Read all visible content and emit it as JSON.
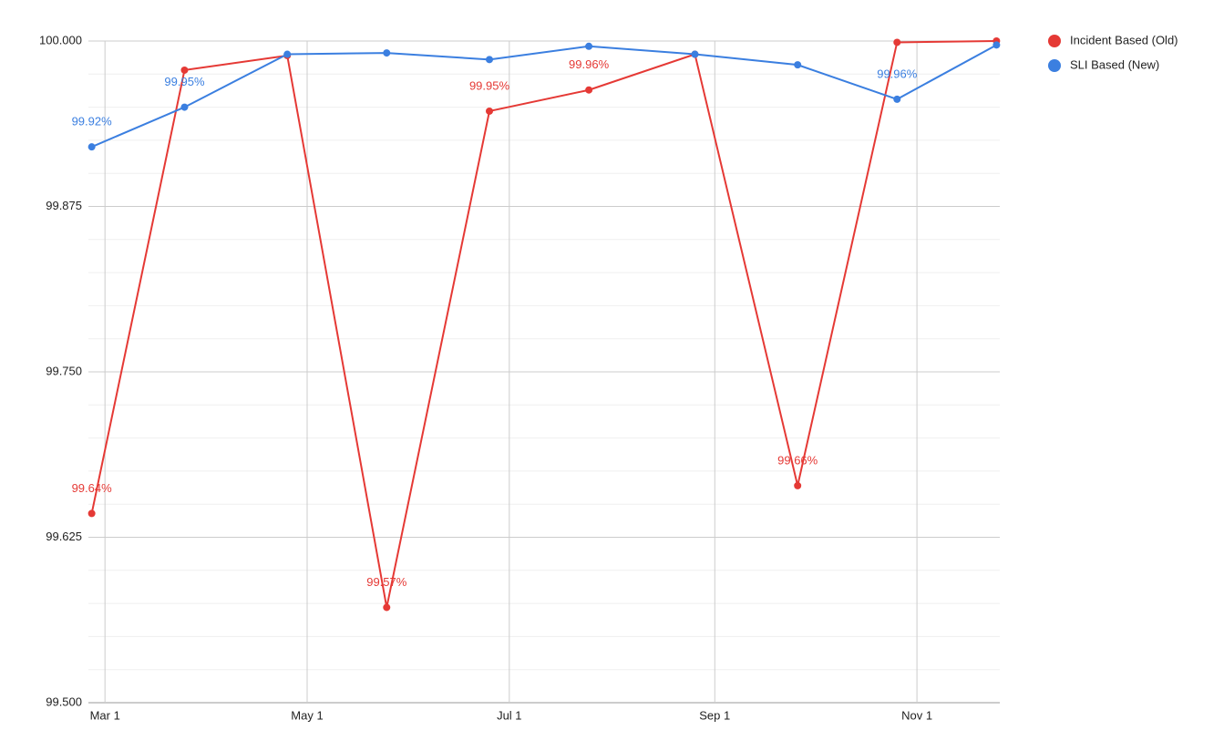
{
  "chart_data": {
    "type": "line",
    "x": [
      "Feb 25",
      "Mar 25",
      "Apr 25",
      "May 25",
      "Jun 25",
      "Jul 25",
      "Aug 26",
      "Sep 26",
      "Oct 26",
      "Nov 25"
    ],
    "xlim": [
      "Feb 24",
      "Nov 26"
    ],
    "xticks": [
      "Mar 1",
      "May 1",
      "Jul 1",
      "Sep 1",
      "Nov 1"
    ],
    "ylim": [
      99.5,
      100
    ],
    "yticks": [
      {
        "value": 99.5,
        "label": "99.500"
      },
      99.625,
      {
        "value": 99.75,
        "label": "99.750"
      },
      99.875,
      {
        "value": 100,
        "label": "100.000"
      }
    ],
    "minor_divisions": 5,
    "grid": true,
    "legend": "top-right",
    "series": [
      {
        "name": "Incident Based (Old)",
        "color": "#e53935",
        "values": [
          99.643,
          99.978,
          99.989,
          99.572,
          99.947,
          99.963,
          99.99,
          99.664,
          99.999,
          100.0
        ],
        "value_labels": [
          "99.64%",
          null,
          null,
          "99.57%",
          "99.95%",
          "99.96%",
          null,
          "99.66%",
          null,
          null
        ]
      },
      {
        "name": "SLI Based (New)",
        "color": "#3b7fe0",
        "values": [
          99.92,
          99.95,
          99.99,
          99.991,
          99.986,
          99.996,
          99.99,
          99.982,
          99.956,
          99.997
        ],
        "value_labels": [
          "99.92%",
          "99.95%",
          null,
          null,
          null,
          null,
          null,
          null,
          "99.96%",
          null
        ]
      }
    ]
  }
}
